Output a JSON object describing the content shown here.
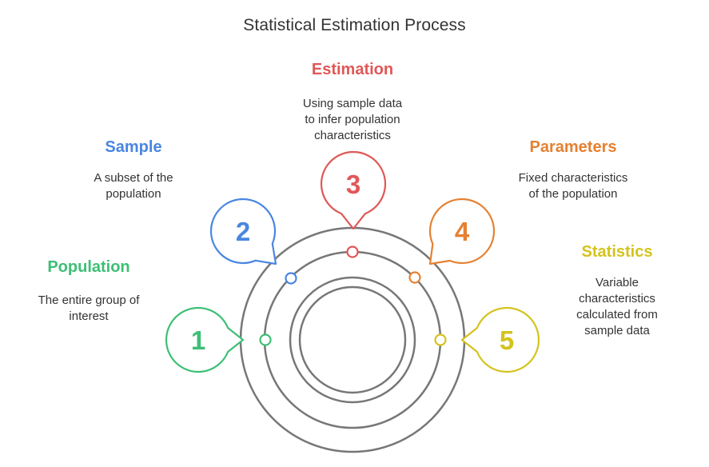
{
  "title": "Statistical Estimation Process",
  "colors": {
    "ring": "#777777",
    "population": "#3dbf75",
    "sample": "#4a86e0",
    "estimation": "#e05757",
    "parameters": "#e58132",
    "statistics": "#d4c31d"
  },
  "steps": [
    {
      "number": "1",
      "label": "Population",
      "description": "The entire group of interest",
      "desc_lines": [
        "The entire group of",
        "interest"
      ]
    },
    {
      "number": "2",
      "label": "Sample",
      "description": "A subset of the population",
      "desc_lines": [
        "A subset of the",
        "population"
      ]
    },
    {
      "number": "3",
      "label": "Estimation",
      "description": "Using sample data to infer population characteristics",
      "desc_lines": [
        "Using sample data",
        "to infer population",
        "characteristics"
      ]
    },
    {
      "number": "4",
      "label": "Parameters",
      "description": "Fixed characteristics of the population",
      "desc_lines": [
        "Fixed characteristics",
        "of the population"
      ]
    },
    {
      "number": "5",
      "label": "Statistics",
      "description": "Variable characteristics calculated from sample data",
      "desc_lines": [
        "Variable",
        "characteristics",
        "calculated from",
        "sample data"
      ]
    }
  ]
}
